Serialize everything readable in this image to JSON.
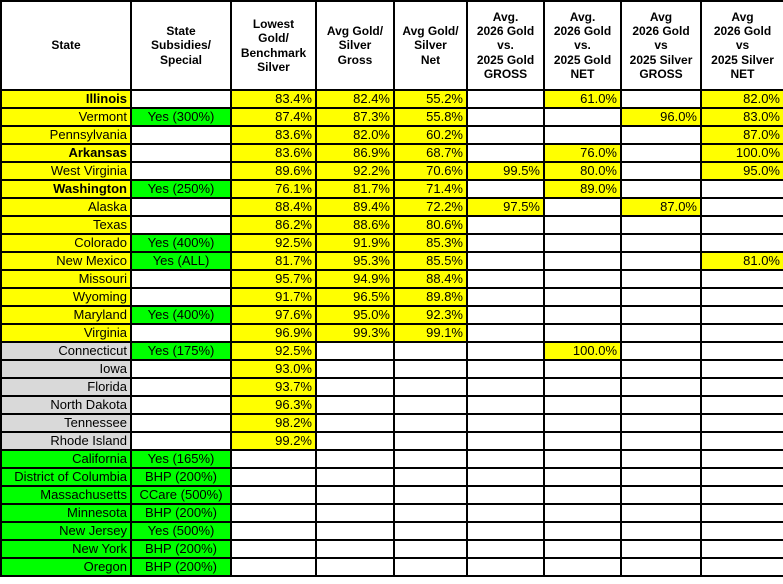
{
  "colors": {
    "highlight_yellow": "#FFFF00",
    "subsidy_green": "#00FF00",
    "neutral_gray": "#D9D9D9",
    "border": "#000000"
  },
  "table": {
    "headers": [
      "State",
      "State\nSubsidies/\nSpecial",
      "Lowest\nGold/\nBenchmark\nSilver",
      "Avg Gold/\nSilver\nGross",
      "Avg Gold/\nSilver\nNet",
      "Avg.\n2026 Gold\nvs.\n2025 Gold\nGROSS",
      "Avg.\n2026 Gold\nvs.\n2025 Gold\nNET",
      "Avg\n2026 Gold\nvs\n2025 Silver\nGROSS",
      "Avg\n2026 Gold\nvs\n2025 Silver\nNET"
    ],
    "value_columns": [
      "lowest_gold_benchmark_silver",
      "avg_gold_silver_gross",
      "avg_gold_silver_net",
      "avg_2026_gold_vs_2025_gold_gross",
      "avg_2026_gold_vs_2025_gold_net",
      "avg_2026_gold_vs_2025_silver_gross",
      "avg_2026_gold_vs_2025_silver_net"
    ],
    "rows": [
      {
        "state": "Illinois",
        "bold": true,
        "group": "yellow",
        "subsidy": "",
        "values": [
          "83.4%",
          "82.4%",
          "55.2%",
          "",
          "61.0%",
          "",
          "82.0%"
        ]
      },
      {
        "state": "Vermont",
        "bold": false,
        "group": "yellow",
        "subsidy": "Yes (300%)",
        "values": [
          "87.4%",
          "87.3%",
          "55.8%",
          "",
          "",
          "96.0%",
          "83.0%"
        ]
      },
      {
        "state": "Pennsylvania",
        "bold": false,
        "group": "yellow",
        "subsidy": "",
        "values": [
          "83.6%",
          "82.0%",
          "60.2%",
          "",
          "",
          "",
          "87.0%"
        ]
      },
      {
        "state": "Arkansas",
        "bold": true,
        "group": "yellow",
        "subsidy": "",
        "values": [
          "83.6%",
          "86.9%",
          "68.7%",
          "",
          "76.0%",
          "",
          "100.0%"
        ]
      },
      {
        "state": "West Virginia",
        "bold": false,
        "group": "yellow",
        "subsidy": "",
        "values": [
          "89.6%",
          "92.2%",
          "70.6%",
          "99.5%",
          "80.0%",
          "",
          "95.0%"
        ]
      },
      {
        "state": "Washington",
        "bold": true,
        "group": "yellow",
        "subsidy": "Yes (250%)",
        "values": [
          "76.1%",
          "81.7%",
          "71.4%",
          "",
          "89.0%",
          "",
          ""
        ]
      },
      {
        "state": "Alaska",
        "bold": false,
        "group": "yellow",
        "subsidy": "",
        "values": [
          "88.4%",
          "89.4%",
          "72.2%",
          "97.5%",
          "",
          "87.0%",
          ""
        ]
      },
      {
        "state": "Texas",
        "bold": false,
        "group": "yellow",
        "subsidy": "",
        "values": [
          "86.2%",
          "88.6%",
          "80.6%",
          "",
          "",
          "",
          ""
        ]
      },
      {
        "state": "Colorado",
        "bold": false,
        "group": "yellow",
        "subsidy": "Yes (400%)",
        "values": [
          "92.5%",
          "91.9%",
          "85.3%",
          "",
          "",
          "",
          ""
        ]
      },
      {
        "state": "New Mexico",
        "bold": false,
        "group": "yellow",
        "subsidy": "Yes (ALL)",
        "values": [
          "81.7%",
          "95.3%",
          "85.5%",
          "",
          "",
          "",
          "81.0%"
        ]
      },
      {
        "state": "Missouri",
        "bold": false,
        "group": "yellow",
        "subsidy": "",
        "values": [
          "95.7%",
          "94.9%",
          "88.4%",
          "",
          "",
          "",
          ""
        ]
      },
      {
        "state": "Wyoming",
        "bold": false,
        "group": "yellow",
        "subsidy": "",
        "values": [
          "91.7%",
          "96.5%",
          "89.8%",
          "",
          "",
          "",
          ""
        ]
      },
      {
        "state": "Maryland",
        "bold": false,
        "group": "yellow",
        "subsidy": "Yes (400%)",
        "values": [
          "97.6%",
          "95.0%",
          "92.3%",
          "",
          "",
          "",
          ""
        ]
      },
      {
        "state": "Virginia",
        "bold": false,
        "group": "yellow",
        "subsidy": "",
        "values": [
          "96.9%",
          "99.3%",
          "99.1%",
          "",
          "",
          "",
          ""
        ]
      },
      {
        "state": "Connecticut",
        "bold": false,
        "group": "gray",
        "subsidy": "Yes (175%)",
        "values": [
          "92.5%",
          "",
          "",
          "",
          "100.0%",
          "",
          ""
        ]
      },
      {
        "state": "Iowa",
        "bold": false,
        "group": "gray",
        "subsidy": "",
        "values": [
          "93.0%",
          "",
          "",
          "",
          "",
          "",
          ""
        ]
      },
      {
        "state": "Florida",
        "bold": false,
        "group": "gray",
        "subsidy": "",
        "values": [
          "93.7%",
          "",
          "",
          "",
          "",
          "",
          ""
        ]
      },
      {
        "state": "North Dakota",
        "bold": false,
        "group": "gray",
        "subsidy": "",
        "values": [
          "96.3%",
          "",
          "",
          "",
          "",
          "",
          ""
        ]
      },
      {
        "state": "Tennessee",
        "bold": false,
        "group": "gray",
        "subsidy": "",
        "values": [
          "98.2%",
          "",
          "",
          "",
          "",
          "",
          ""
        ]
      },
      {
        "state": "Rhode Island",
        "bold": false,
        "group": "gray",
        "subsidy": "",
        "values": [
          "99.2%",
          "",
          "",
          "",
          "",
          "",
          ""
        ]
      },
      {
        "state": "California",
        "bold": false,
        "group": "green",
        "subsidy": "Yes (165%)",
        "values": [
          "",
          "",
          "",
          "",
          "",
          "",
          ""
        ]
      },
      {
        "state": "District of Columbia",
        "bold": false,
        "group": "green",
        "subsidy": "BHP (200%)",
        "values": [
          "",
          "",
          "",
          "",
          "",
          "",
          ""
        ]
      },
      {
        "state": "Massachusetts",
        "bold": false,
        "group": "green",
        "subsidy": "CCare (500%)",
        "values": [
          "",
          "",
          "",
          "",
          "",
          "",
          ""
        ]
      },
      {
        "state": "Minnesota",
        "bold": false,
        "group": "green",
        "subsidy": "BHP (200%)",
        "values": [
          "",
          "",
          "",
          "",
          "",
          "",
          ""
        ]
      },
      {
        "state": "New Jersey",
        "bold": false,
        "group": "green",
        "subsidy": "Yes (500%)",
        "values": [
          "",
          "",
          "",
          "",
          "",
          "",
          ""
        ]
      },
      {
        "state": "New York",
        "bold": false,
        "group": "green",
        "subsidy": "BHP (200%)",
        "values": [
          "",
          "",
          "",
          "",
          "",
          "",
          ""
        ]
      },
      {
        "state": "Oregon",
        "bold": false,
        "group": "green",
        "subsidy": "BHP (200%)",
        "values": [
          "",
          "",
          "",
          "",
          "",
          "",
          ""
        ]
      }
    ]
  }
}
